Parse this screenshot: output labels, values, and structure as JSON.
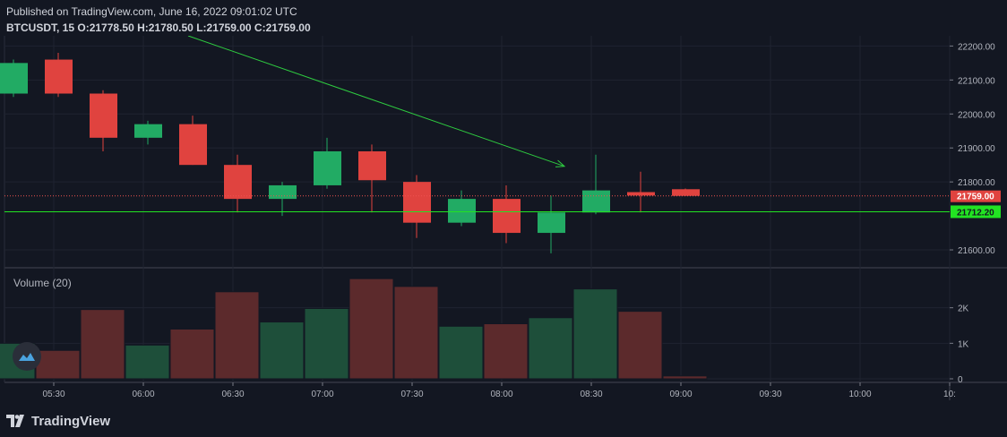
{
  "header": {
    "published": "Published on TradingView.com, June 16, 2022 09:01:02 UTC",
    "symbol": "BTCUSDT, 15",
    "o_label": "O:",
    "o": "21778.50",
    "h_label": "H:",
    "h": "21780.50",
    "l_label": "L:",
    "l": "21759.00",
    "c_label": "C:",
    "c": "21759.00"
  },
  "footer": {
    "brand": "TradingView"
  },
  "colors": {
    "up": "#26a69a",
    "up_bright": "#22ab64",
    "down": "#e0433f",
    "bg": "#131722",
    "grid": "#1f2330",
    "volume_up": "#1e4f3a",
    "volume_down": "#5c2a2c",
    "price_line": "#ef5350",
    "h_line": "#22e322",
    "arrow": "#2ecc40"
  },
  "chart_data": [
    {
      "type": "candlestick",
      "title": "",
      "x": [
        "05:15",
        "05:30",
        "05:45",
        "06:00",
        "06:15",
        "06:30",
        "06:45",
        "07:00",
        "07:15",
        "07:30",
        "07:45",
        "08:00",
        "08:15",
        "08:30",
        "08:45",
        "09:00"
      ],
      "open": [
        22060,
        22160,
        22060,
        21930,
        21970,
        21850,
        21750,
        21790,
        21890,
        21800,
        21680,
        21750,
        21650,
        21710,
        21770,
        21778.5
      ],
      "high": [
        22160,
        22180,
        22070,
        21980,
        21995,
        21880,
        21800,
        21930,
        21910,
        21820,
        21775,
        21790,
        21760,
        21880,
        21830,
        21780.5
      ],
      "low": [
        22050,
        22050,
        21890,
        21910,
        21850,
        21710,
        21700,
        21780,
        21710,
        21635,
        21670,
        21620,
        21590,
        21705,
        21710,
        21759
      ],
      "close": [
        22150,
        22060,
        21930,
        21970,
        21850,
        21750,
        21790,
        21890,
        21805,
        21680,
        21750,
        21650,
        21710,
        21775,
        21760,
        21759
      ],
      "ylim": [
        21550,
        22230
      ],
      "y_ticks": [
        "22200.00",
        "22100.00",
        "22000.00",
        "21900.00",
        "21800.00",
        "21600.00"
      ],
      "y_tick_values": [
        22200,
        22100,
        22000,
        21900,
        21800,
        21600
      ],
      "last_price_label": "21759.00",
      "last_price": 21759,
      "horizontal_line_label": "21712.20",
      "horizontal_line": 21712.2,
      "trend_arrow": {
        "from": [
          "05:15",
          22500
        ],
        "to": [
          "08:15",
          21846
        ]
      }
    },
    {
      "type": "bar",
      "title": "Volume (20)",
      "categories": [
        "05:15",
        "05:30",
        "05:45",
        "06:00",
        "06:15",
        "06:30",
        "06:45",
        "07:00",
        "07:15",
        "07:30",
        "07:45",
        "08:00",
        "08:15",
        "08:30",
        "08:45",
        "09:00"
      ],
      "values": [
        1000,
        800,
        1950,
        950,
        1400,
        2450,
        1600,
        1980,
        2820,
        2600,
        1480,
        1550,
        1720,
        2530,
        1900,
        80
      ],
      "direction": [
        "up",
        "down",
        "down",
        "up",
        "down",
        "down",
        "up",
        "up",
        "down",
        "down",
        "up",
        "down",
        "up",
        "up",
        "down",
        "down"
      ],
      "ylim": [
        0,
        2950
      ],
      "y_ticks": [
        "2K",
        "1K",
        "0"
      ],
      "y_tick_values": [
        2000,
        1000,
        0
      ]
    }
  ],
  "x_axis": {
    "labels": [
      "05:30",
      "06:00",
      "06:30",
      "07:00",
      "07:30",
      "08:00",
      "08:30",
      "09:00",
      "09:30",
      "10:00",
      "10:"
    ],
    "slots": [
      1,
      3,
      5,
      7,
      9,
      11,
      13,
      15,
      17,
      19,
      21
    ]
  }
}
